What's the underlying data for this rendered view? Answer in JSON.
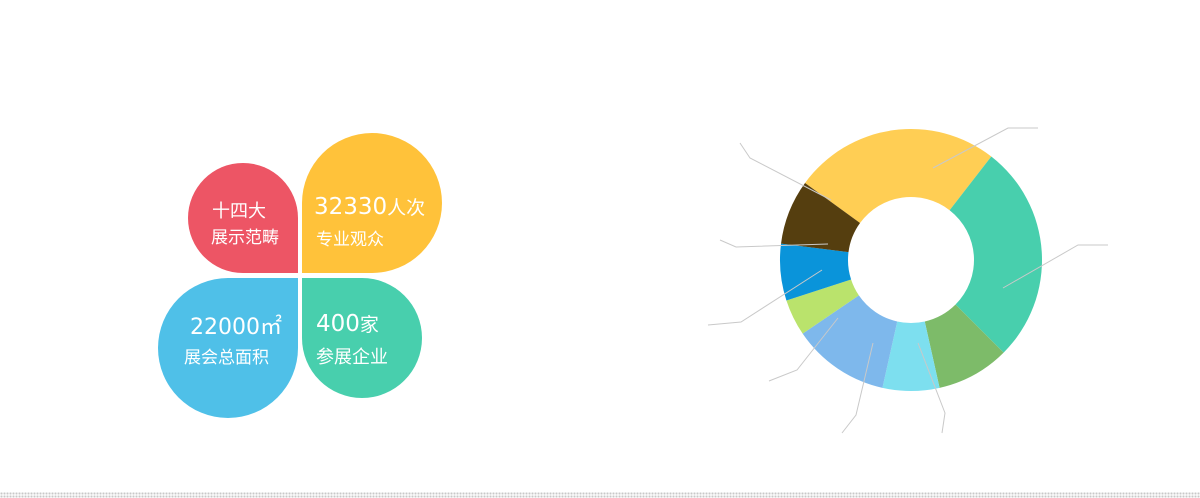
{
  "highlights": {
    "scale": {
      "line1": "十四大",
      "line2": "展示范畴",
      "color": "#ED5565"
    },
    "visitors": {
      "number": "32330",
      "unit": "人次",
      "line2": "专业观众",
      "color": "#FFC23A"
    },
    "area": {
      "number": "22000㎡",
      "line2": "展会总面积",
      "color": "#4FC0E8"
    },
    "exhibitors": {
      "number": "400",
      "unit": "家",
      "line2": "参展企业",
      "color": "#48CFAD"
    }
  },
  "chart_data": {
    "type": "pie",
    "donut": true,
    "title": "",
    "slices": [
      {
        "value": 25.5,
        "color": "#FFCE54",
        "label": ""
      },
      {
        "value": 27.0,
        "color": "#48CFAD",
        "label": ""
      },
      {
        "value": 9.0,
        "color": "#7DBB69",
        "label": ""
      },
      {
        "value": 7.0,
        "color": "#7DDFEF",
        "label": ""
      },
      {
        "value": 12.0,
        "color": "#7EB8EC",
        "label": ""
      },
      {
        "value": 4.5,
        "color": "#BAE36C",
        "label": ""
      },
      {
        "value": 7.0,
        "color": "#0A94DA",
        "label": ""
      },
      {
        "value": 8.0,
        "color": "#553E0F",
        "label": ""
      }
    ]
  }
}
